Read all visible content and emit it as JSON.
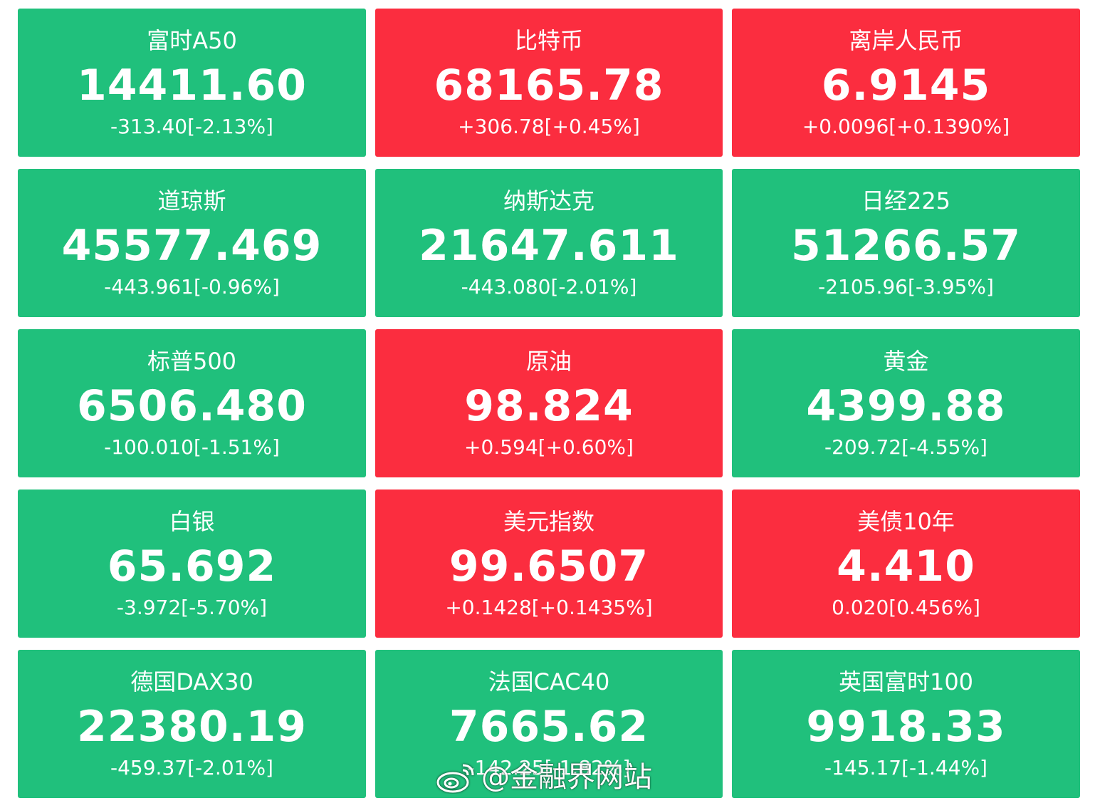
{
  "colors": {
    "down": "#20c07c",
    "up": "#fb2d3f",
    "text": "#ffffff"
  },
  "tiles": [
    {
      "name": "富时A50",
      "price": "14411.60",
      "change": "-313.40[-2.13%]",
      "trend": "down"
    },
    {
      "name": "比特币",
      "price": "68165.78",
      "change": "+306.78[+0.45%]",
      "trend": "up"
    },
    {
      "name": "离岸人民币",
      "price": "6.9145",
      "change": "+0.0096[+0.1390%]",
      "trend": "up"
    },
    {
      "name": "道琼斯",
      "price": "45577.469",
      "change": "-443.961[-0.96%]",
      "trend": "down"
    },
    {
      "name": "纳斯达克",
      "price": "21647.611",
      "change": "-443.080[-2.01%]",
      "trend": "down"
    },
    {
      "name": "日经225",
      "price": "51266.57",
      "change": "-2105.96[-3.95%]",
      "trend": "down"
    },
    {
      "name": "标普500",
      "price": "6506.480",
      "change": "-100.010[-1.51%]",
      "trend": "down"
    },
    {
      "name": "原油",
      "price": "98.824",
      "change": "+0.594[+0.60%]",
      "trend": "up"
    },
    {
      "name": "黄金",
      "price": "4399.88",
      "change": "-209.72[-4.55%]",
      "trend": "down"
    },
    {
      "name": "白银",
      "price": "65.692",
      "change": "-3.972[-5.70%]",
      "trend": "down"
    },
    {
      "name": "美元指数",
      "price": "99.6507",
      "change": "+0.1428[+0.1435%]",
      "trend": "up"
    },
    {
      "name": "美债10年",
      "price": "4.410",
      "change": "0.020[0.456%]",
      "trend": "up"
    },
    {
      "name": "德国DAX30",
      "price": "22380.19",
      "change": "-459.37[-2.01%]",
      "trend": "down"
    },
    {
      "name": "法国CAC40",
      "price": "7665.62",
      "change": "-142.25[-1.82%]",
      "trend": "down"
    },
    {
      "name": "英国富时100",
      "price": "9918.33",
      "change": "-145.17[-1.44%]",
      "trend": "down"
    }
  ],
  "watermark": {
    "icon": "weibo-icon",
    "text": "@金融界网站"
  }
}
